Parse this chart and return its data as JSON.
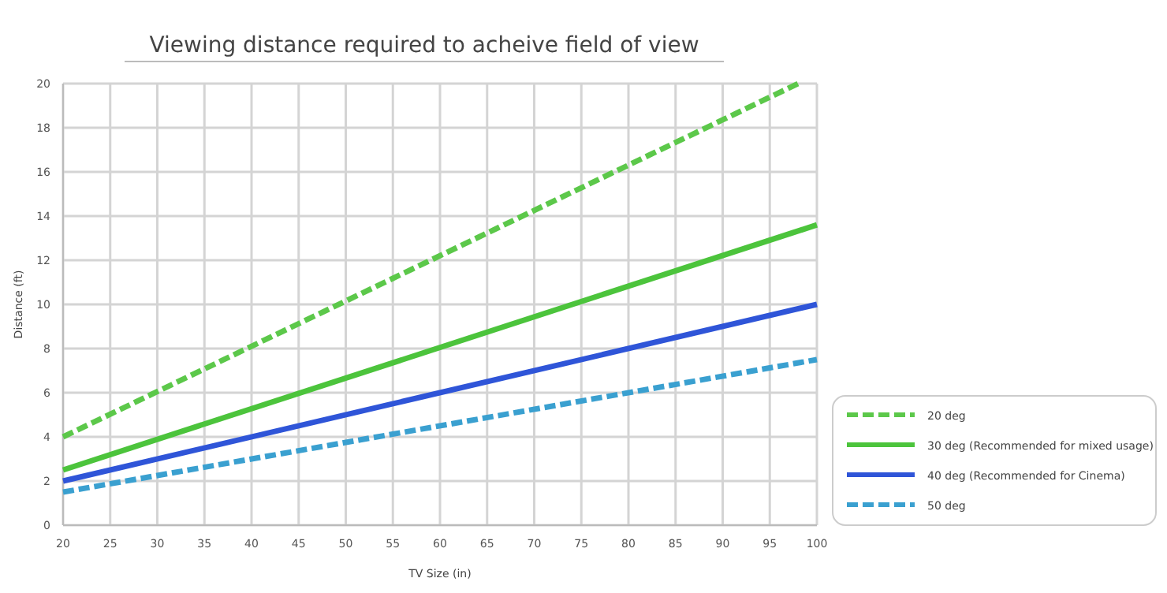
{
  "chart_data": {
    "type": "line",
    "title": "Viewing distance required to acheive field of view",
    "xlabel": "TV Size (in)",
    "ylabel": "Distance (ft)",
    "x": [
      20,
      100
    ],
    "series": [
      {
        "name": "20 deg",
        "color": "#5cc84a",
        "x": [
          20,
          98
        ],
        "values": [
          4,
          20
        ],
        "line_style": "dashed"
      },
      {
        "name": "30 deg (Recommended for mixed usage)",
        "color": "#4cc43c",
        "values": [
          2.5,
          13.6
        ],
        "line_style": "solid"
      },
      {
        "name": "40 deg (Recommended for Cinema)",
        "color": "#2f55d8",
        "values": [
          2,
          10
        ],
        "line_style": "solid"
      },
      {
        "name": "50 deg",
        "color": "#3aa0d0",
        "values": [
          1.5,
          7.5
        ],
        "line_style": "dashed"
      }
    ],
    "xlim": [
      20,
      100
    ],
    "xticks": [
      20,
      25,
      30,
      35,
      40,
      45,
      50,
      55,
      60,
      65,
      70,
      75,
      80,
      85,
      90,
      95,
      100
    ],
    "ylim": [
      0,
      20
    ],
    "yticks": [
      0,
      2,
      4,
      6,
      8,
      10,
      12,
      14,
      16,
      18,
      20
    ],
    "grid": true,
    "legend": "bottom right",
    "marker": "none"
  }
}
